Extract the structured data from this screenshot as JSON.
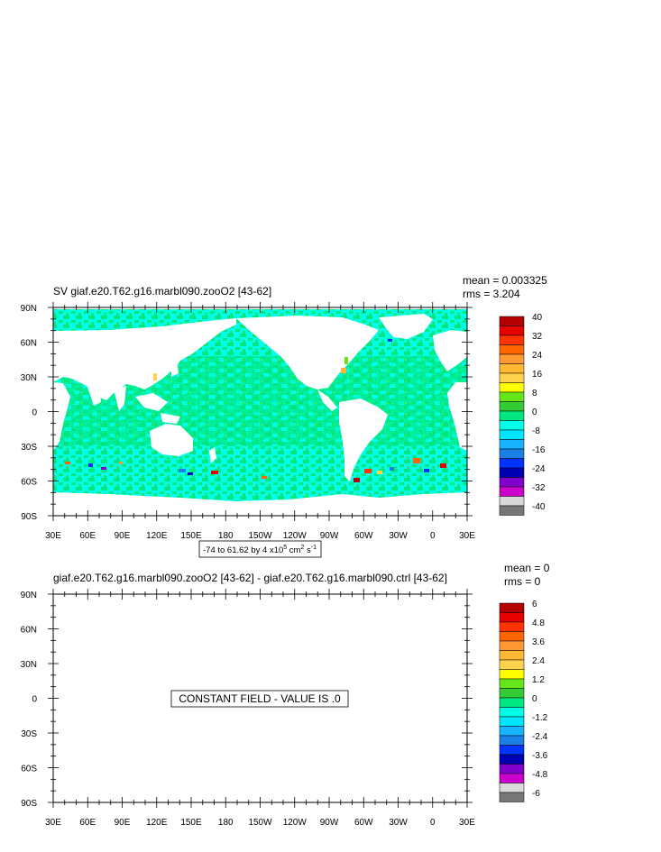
{
  "panels": [
    {
      "title": "SV giaf.e20.T62.g16.marbl090.zooO2 [43-62]",
      "mean_label": "mean = 0.003325",
      "rms_label": "rms = 3.204",
      "range_label_main": "-74 to 61.62 by 4 x10",
      "range_label_exp": "5",
      "range_label_units": " cm",
      "range_label_units_exp": "2",
      "range_label_tail": " s",
      "range_label_tail_exp": "-1",
      "colorbar_labels": [
        "40",
        "32",
        "24",
        "16",
        "8",
        "0",
        "-8",
        "-16",
        "-24",
        "-32",
        "-40"
      ],
      "has_field": true
    },
    {
      "title": "giaf.e20.T62.g16.marbl090.zooO2 [43-62] - giaf.e20.T62.g16.marbl090.ctrl [43-62]",
      "mean_label": "mean = 0",
      "rms_label": "rms = 0",
      "constant_label": "CONSTANT FIELD - VALUE IS .0",
      "colorbar_labels": [
        "6",
        "4.8",
        "3.6",
        "2.4",
        "1.2",
        "0",
        "-1.2",
        "-2.4",
        "-3.6",
        "-4.8",
        "-6"
      ],
      "has_field": false
    }
  ],
  "lat_labels": [
    "90N",
    "60N",
    "30N",
    "0",
    "30S",
    "60S",
    "90S"
  ],
  "lon_labels": [
    "30E",
    "60E",
    "90E",
    "120E",
    "150E",
    "180",
    "150W",
    "120W",
    "90W",
    "60W",
    "30W",
    "0",
    "30E"
  ],
  "palette": [
    "#b30000",
    "#e60000",
    "#ff3300",
    "#ff6600",
    "#ff9933",
    "#ffb833",
    "#ffd24d",
    "#ffff00",
    "#66e61a",
    "#33cc33",
    "#00e680",
    "#00ffe6",
    "#00e6ff",
    "#1ab3ff",
    "#1a80e6",
    "#0033ff",
    "#0000b3",
    "#8000cc",
    "#cc00cc",
    "#d9d9d9",
    "#777777"
  ],
  "colors": {
    "ocean_base": "#00ffe6",
    "ocean_alt": "#00e680",
    "land": "#ffffff"
  }
}
